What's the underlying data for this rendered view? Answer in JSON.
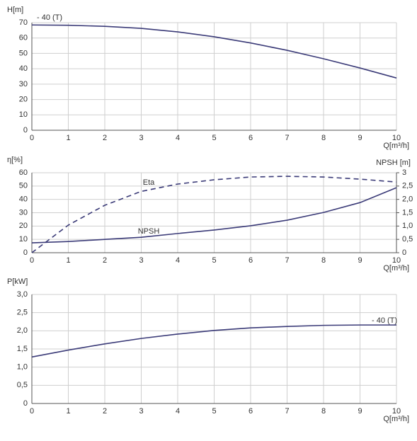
{
  "chart_data": [
    {
      "type": "line",
      "y_label": "H[m]",
      "x_label": "Q[m³/h]",
      "x": [
        0,
        1,
        2,
        3,
        4,
        5,
        6,
        7,
        8,
        9,
        10
      ],
      "xlim": [
        0,
        10
      ],
      "xticks": [
        0,
        1,
        2,
        3,
        4,
        5,
        6,
        7,
        8,
        9,
        10
      ],
      "ylim": [
        0,
        70
      ],
      "yticks": [
        0,
        10,
        20,
        30,
        40,
        50,
        60,
        70
      ],
      "grid": true,
      "series": [
        {
          "name": "- 40 (T)",
          "color": "#3b3b78",
          "dash": false,
          "values": [
            68.5,
            68.3,
            67.6,
            66.3,
            64.0,
            60.8,
            56.8,
            52.0,
            46.5,
            40.5,
            34.0
          ]
        }
      ]
    },
    {
      "type": "line",
      "y_label": "η[%]",
      "y2_label": "NPSH [m]",
      "x_label": "Q[m³/h]",
      "x": [
        0,
        1,
        2,
        3,
        4,
        5,
        6,
        7,
        8,
        9,
        10
      ],
      "xlim": [
        0,
        10
      ],
      "xticks": [
        0,
        1,
        2,
        3,
        4,
        5,
        6,
        7,
        8,
        9,
        10
      ],
      "ylim": [
        0,
        60
      ],
      "yticks": [
        0,
        10,
        20,
        30,
        40,
        50,
        60
      ],
      "y2lim": [
        0,
        3
      ],
      "y2ticks": [
        0,
        {
          "value": 0.5,
          "label": "0,5"
        },
        {
          "value": 1,
          "label": "1,0"
        },
        {
          "value": 1.5,
          "label": "1,5"
        },
        {
          "value": 2,
          "label": "2,0"
        },
        {
          "value": 2.5,
          "label": "2,5"
        },
        3
      ],
      "grid": true,
      "series": [
        {
          "name": "Eta",
          "color": "#3b3b78",
          "dash": true,
          "values": [
            0,
            20.7,
            35.6,
            46.0,
            51.5,
            54.7,
            56.8,
            57.3,
            56.8,
            55.2,
            53.0
          ]
        },
        {
          "name": "NPSH",
          "color": "#3b3b78",
          "dash": false,
          "axis": "y2",
          "values": [
            0.37,
            0.42,
            0.5,
            0.58,
            0.72,
            0.85,
            1.01,
            1.22,
            1.51,
            1.88,
            2.44
          ]
        }
      ]
    },
    {
      "type": "line",
      "y_label": "P[kW]",
      "x_label": "Q[m³/h]",
      "x": [
        0,
        1,
        2,
        3,
        4,
        5,
        6,
        7,
        8,
        9,
        10
      ],
      "xlim": [
        0,
        10
      ],
      "xticks": [
        0,
        1,
        2,
        3,
        4,
        5,
        6,
        7,
        8,
        9,
        10
      ],
      "ylim": [
        0,
        3
      ],
      "yticks": [
        0,
        {
          "value": 0.5,
          "label": "0,5"
        },
        {
          "value": 1,
          "label": "1,0"
        },
        {
          "value": 1.5,
          "label": "1,5"
        },
        {
          "value": 2,
          "label": "2,0"
        },
        {
          "value": 2.5,
          "label": "2,5"
        },
        {
          "value": 3,
          "label": "3,0"
        }
      ],
      "grid": true,
      "series": [
        {
          "name": "- 40 (T)",
          "color": "#3b3b78",
          "dash": false,
          "values": [
            1.28,
            1.47,
            1.64,
            1.79,
            1.91,
            2.01,
            2.08,
            2.12,
            2.15,
            2.16,
            2.16
          ]
        }
      ]
    }
  ]
}
